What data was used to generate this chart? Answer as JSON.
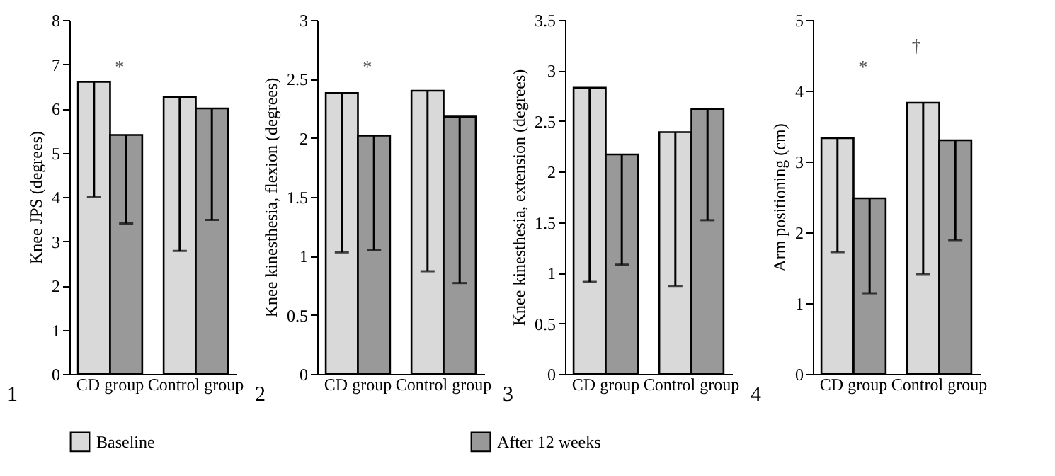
{
  "chart_data": [
    {
      "type": "bar",
      "ylabel": "Knee JPS (degrees)",
      "categories": [
        "CD group",
        "Control group"
      ],
      "ylim": [
        0,
        8
      ],
      "yticks": [
        0,
        1,
        2,
        3,
        4,
        5,
        6,
        7,
        8
      ],
      "legend": "bottom",
      "grid": false,
      "series": [
        {
          "name": "Baseline",
          "color": "#d9d9d9",
          "values": [
            6.6,
            6.25
          ],
          "errors": [
            [
              4.0,
              6.6
            ],
            [
              2.78,
              6.25
            ]
          ]
        },
        {
          "name": "After 12 weeks",
          "color": "#999999",
          "values": [
            5.4,
            6.0
          ],
          "errors": [
            [
              3.4,
              5.4
            ],
            [
              3.48,
              6.0
            ]
          ]
        }
      ],
      "annotations": [
        "1",
        "*"
      ]
    },
    {
      "type": "bar",
      "ylabel": "Knee kinesthesia, flexion (degrees)",
      "categories": [
        "CD group",
        "Control group"
      ],
      "ylim": [
        0,
        3
      ],
      "yticks": [
        0,
        0.5,
        1,
        1.5,
        2,
        2.5,
        3
      ],
      "legend": "bottom",
      "grid": false,
      "series": [
        {
          "name": "Baseline",
          "color": "#d9d9d9",
          "values": [
            2.38,
            2.4
          ],
          "errors": [
            [
              1.03,
              2.38
            ],
            [
              0.87,
              2.4
            ]
          ]
        },
        {
          "name": "After 12 weeks",
          "color": "#999999",
          "values": [
            2.02,
            2.18
          ],
          "errors": [
            [
              1.05,
              2.02
            ],
            [
              0.77,
              2.18
            ]
          ]
        }
      ],
      "annotations": [
        "2",
        "*"
      ]
    },
    {
      "type": "bar",
      "ylabel": "Knee kinesthesia, extension (degrees)",
      "categories": [
        "CD group",
        "Control group"
      ],
      "ylim": [
        0,
        3.5
      ],
      "yticks": [
        0,
        0.5,
        1,
        1.5,
        2,
        2.5,
        3,
        3.5
      ],
      "legend": "bottom",
      "grid": false,
      "series": [
        {
          "name": "Baseline",
          "color": "#d9d9d9",
          "values": [
            2.83,
            2.39
          ],
          "errors": [
            [
              0.91,
              2.83
            ],
            [
              0.87,
              2.39
            ]
          ]
        },
        {
          "name": "After 12 weeks",
          "color": "#999999",
          "values": [
            2.17,
            2.62
          ],
          "errors": [
            [
              1.08,
              2.17
            ],
            [
              1.52,
              2.62
            ]
          ]
        }
      ],
      "annotations": [
        "3"
      ]
    },
    {
      "type": "bar",
      "ylabel": "Arm positioning (cm)",
      "categories": [
        "CD group",
        "Control group"
      ],
      "ylim": [
        0,
        5
      ],
      "yticks": [
        0,
        1,
        2,
        3,
        4,
        5
      ],
      "legend": "bottom",
      "grid": false,
      "series": [
        {
          "name": "Baseline",
          "color": "#d9d9d9",
          "values": [
            3.33,
            3.83
          ],
          "errors": [
            [
              1.72,
              3.33
            ],
            [
              1.41,
              3.83
            ]
          ]
        },
        {
          "name": "After 12 weeks",
          "color": "#999999",
          "values": [
            2.48,
            3.3
          ],
          "errors": [
            [
              1.14,
              2.48
            ],
            [
              1.89,
              3.3
            ]
          ]
        }
      ],
      "annotations": [
        "4",
        "*",
        "†"
      ]
    }
  ]
}
